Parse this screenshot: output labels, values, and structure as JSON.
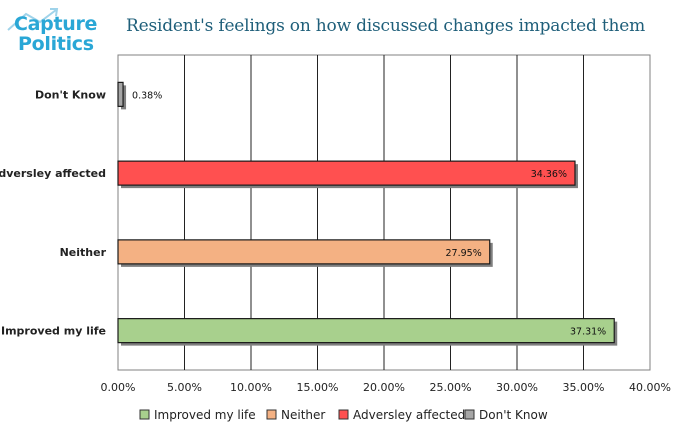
{
  "logo": {
    "line1": "Capture",
    "line2": "Politics"
  },
  "chart_data": {
    "type": "bar",
    "orientation": "horizontal",
    "title": "Resident's feelings on how discussed changes impacted them",
    "categories": [
      "Improved my life",
      "Neither",
      "Adversley affected",
      "Don't Know"
    ],
    "values": [
      37.31,
      27.95,
      34.36,
      0.38
    ],
    "value_labels": [
      "37.31%",
      "27.95%",
      "34.36%",
      "0.38%"
    ],
    "colors": [
      "#a8d08d",
      "#f4b183",
      "#ff5050",
      "#a6a6a6"
    ],
    "xlim": [
      0,
      40
    ],
    "xticks": [
      0,
      5,
      10,
      15,
      20,
      25,
      30,
      35,
      40
    ],
    "xtick_labels": [
      "0.00%",
      "5.00%",
      "10.00%",
      "15.00%",
      "20.00%",
      "25.00%",
      "30.00%",
      "35.00%",
      "40.00%"
    ],
    "grid": true,
    "legend": {
      "position": "bottom",
      "entries": [
        "Improved my life",
        "Neither",
        "Adversley affected",
        "Don't Know"
      ]
    }
  }
}
